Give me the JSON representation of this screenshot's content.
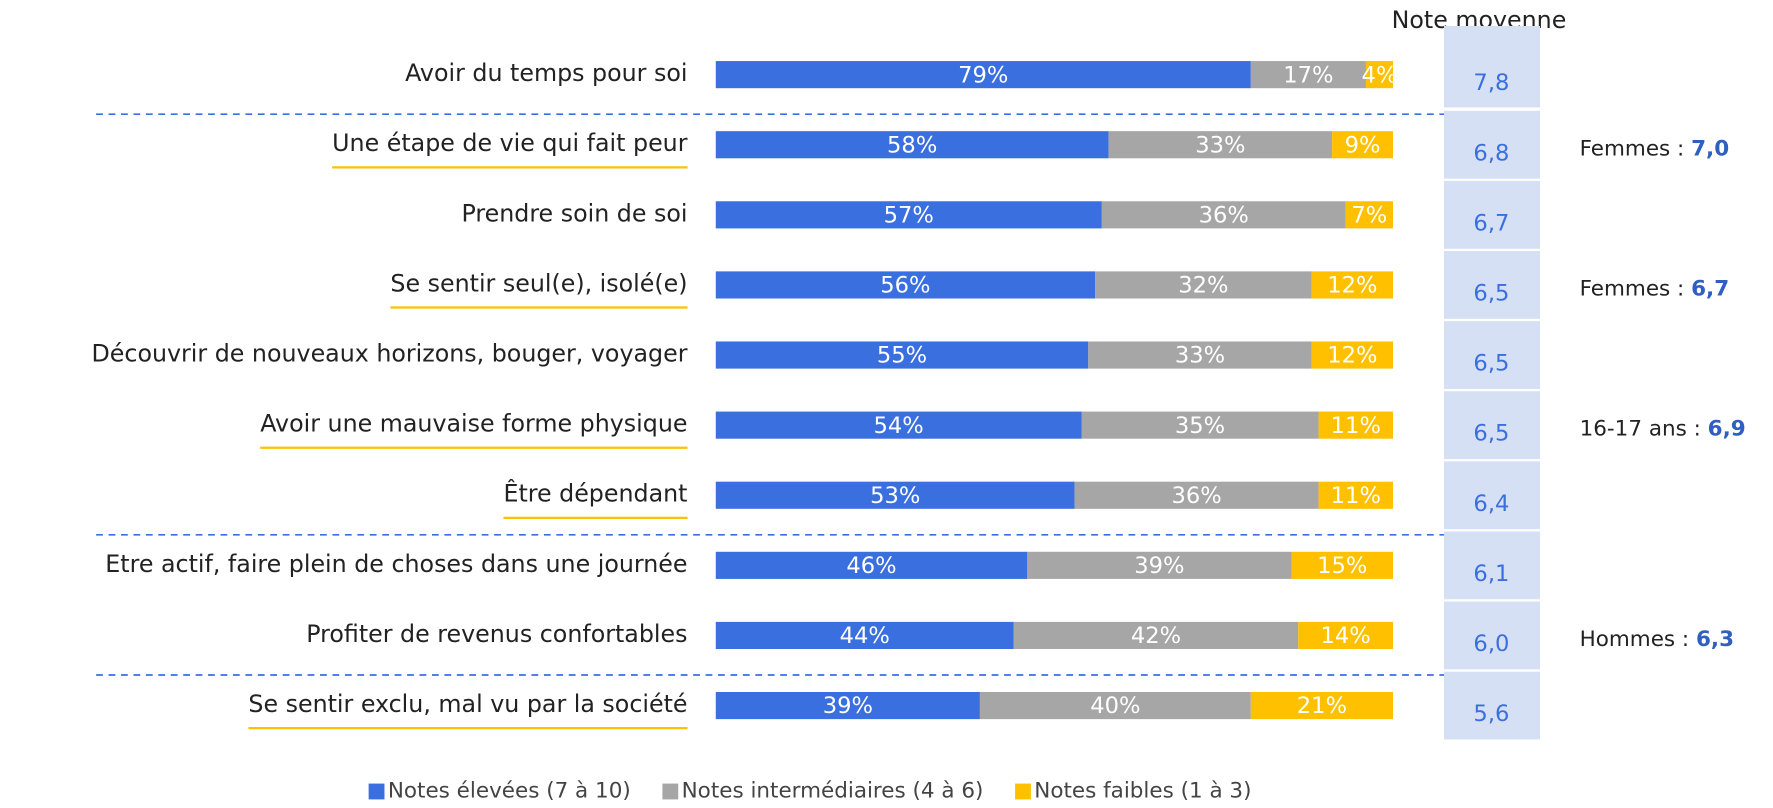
{
  "chart_data": {
    "type": "stacked_bar_horizontal",
    "categories": [
      "Avoir du temps pour soi",
      "Une étape de vie qui fait peur",
      "Prendre soin de soi",
      "Se sentir seul(e), isolé(e)",
      "Découvrir de nouveaux horizons, bouger, voyager",
      "Avoir une mauvaise forme physique",
      "Être dépendant",
      "Etre actif, faire plein de choses dans une journée",
      "Profiter de revenus confortables",
      "Se sentir exclu, mal vu par la société"
    ],
    "xlim": [
      0,
      100
    ],
    "series": [
      {
        "name": "Notes élevées (7 à 10)",
        "color": "#3a6fdf",
        "values": [
          79,
          58,
          57,
          56,
          55,
          54,
          53,
          46,
          44,
          39
        ],
        "value_labels": [
          "79%",
          "58%",
          "57%",
          "56%",
          "55%",
          "54%",
          "53%",
          "46%",
          "44%",
          "39%"
        ]
      },
      {
        "name": "Notes intermédiaires (4 à 6)",
        "color": "#a6a6a6",
        "values": [
          17,
          33,
          36,
          32,
          33,
          35,
          36,
          39,
          42,
          40
        ],
        "value_labels": [
          "17%",
          "33%",
          "36%",
          "32%",
          "33%",
          "35%",
          "36%",
          "39%",
          "42%",
          "40%"
        ]
      },
      {
        "name": "Notes faibles (1 à 3)",
        "color": "#ffc000",
        "values": [
          4,
          9,
          7,
          12,
          12,
          11,
          11,
          15,
          14,
          21
        ],
        "value_labels": [
          "4%",
          "9%",
          "7%",
          "12%",
          "12%",
          "11%",
          "11%",
          "15%",
          "14%",
          "21%"
        ]
      }
    ],
    "mean_score": {
      "title": "Note moyenne",
      "values": [
        7.8,
        6.8,
        6.7,
        6.5,
        6.5,
        6.5,
        6.4,
        6.1,
        6.0,
        5.6
      ],
      "value_labels": [
        "7,8",
        "6,8",
        "6,7",
        "6,5",
        "6,5",
        "6,5",
        "6,4",
        "6,1",
        "6,0",
        "5,6"
      ]
    },
    "annotations": [
      {
        "category": "Une étape de vie qui fait peur",
        "text": "Femmes :",
        "value": 7.0,
        "value_label": "7,0"
      },
      {
        "category": "Se sentir seul(e), isolé(e)",
        "text": "Femmes :",
        "value": 6.7,
        "value_label": "6,7"
      },
      {
        "category": "Avoir une mauvaise forme physique",
        "text": "16-17 ans :",
        "value": 6.9,
        "value_label": "6,9"
      },
      {
        "category": "Profiter de revenus confortables",
        "text": "Hommes :",
        "value": 6.3,
        "value_label": "6,3"
      }
    ],
    "underlined_categories": [
      "Une étape de vie qui fait peur",
      "Se sentir seul(e), isolé(e)",
      "Avoir une mauvaise forme physique",
      "Être dépendant",
      "Se sentir exclu, mal vu par la société"
    ],
    "separators_after": [
      "Avoir du temps pour soi",
      "Être dépendant",
      "Profiter de revenus confortables"
    ],
    "legend": "bottom"
  }
}
